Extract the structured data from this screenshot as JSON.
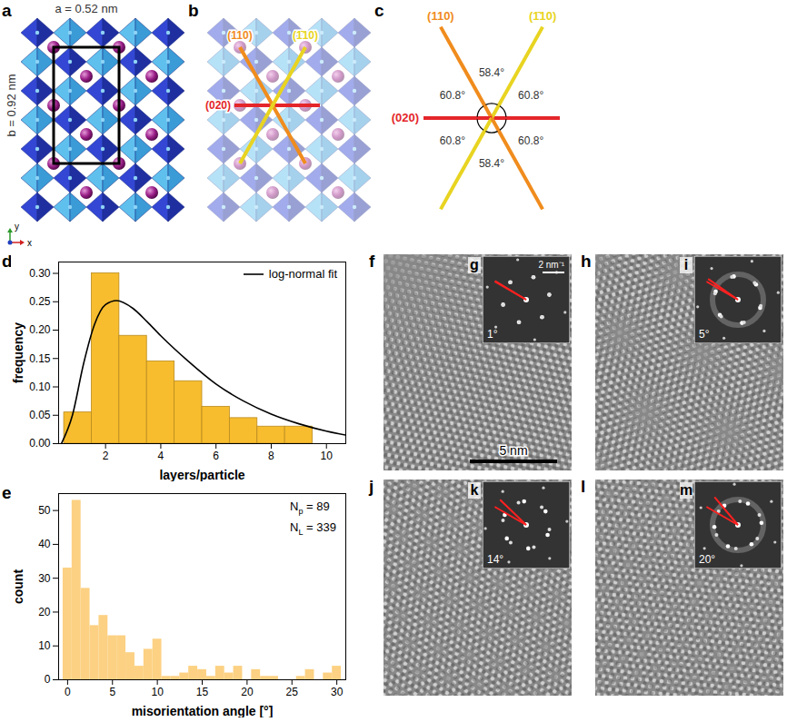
{
  "chart_data": [
    {
      "panel": "d",
      "type": "histogram",
      "xlabel": "layers/particle",
      "ylabel": "frequency",
      "bins": [
        0.5,
        1.5,
        2.5,
        3.5,
        4.5,
        5.5,
        6.5,
        7.5,
        8.5,
        9.5
      ],
      "values": [
        0.055,
        0.3,
        0.19,
        0.145,
        0.11,
        0.065,
        0.045,
        0.03,
        0.03
      ],
      "color": "#f7bd2e",
      "series": [
        {
          "name": "log-normal fit",
          "type": "line",
          "color": "#000000",
          "x": [
            0.4,
            0.8,
            1.2,
            1.6,
            2.0,
            2.4,
            3.0,
            3.5,
            4.0,
            5.0,
            6.0,
            7.0,
            8.0,
            9.0,
            10.0,
            10.7
          ],
          "values": [
            0.0,
            0.05,
            0.14,
            0.21,
            0.245,
            0.252,
            0.238,
            0.215,
            0.19,
            0.145,
            0.105,
            0.075,
            0.052,
            0.035,
            0.022,
            0.015
          ]
        }
      ],
      "xlim": [
        0.3,
        10.7
      ],
      "xticks": [
        2,
        4,
        6,
        8,
        10
      ],
      "ylim": [
        0,
        0.32
      ],
      "yticks": [
        {
          "value": 0,
          "label": "0.00"
        },
        {
          "value": 0.05,
          "label": "0.05"
        },
        {
          "value": 0.1,
          "label": "0.10"
        },
        {
          "value": 0.15,
          "label": "0.15"
        },
        {
          "value": 0.2,
          "label": "0.20"
        },
        {
          "value": 0.25,
          "label": "0.25"
        },
        {
          "value": 0.3,
          "label": "0.30"
        }
      ],
      "legend": "top-right"
    },
    {
      "panel": "e",
      "type": "histogram",
      "xlabel": "misorientation angle [°]",
      "ylabel": "count",
      "bins": [
        -0.5,
        0.5,
        1.5,
        2.5,
        3.5,
        4.5,
        5.5,
        6.5,
        7.5,
        8.5,
        9.5,
        10.5,
        11.5,
        12.5,
        13.5,
        14.5,
        15.5,
        16.5,
        17.5,
        18.5,
        19.5,
        20.5,
        21.5,
        22.5,
        23.5,
        24.5,
        25.5,
        26.5,
        27.5,
        28.5,
        29.5,
        30.5
      ],
      "values": [
        33,
        53,
        27,
        16,
        19,
        13,
        13,
        8,
        4,
        9,
        12,
        1,
        1,
        2,
        4,
        3,
        1,
        4,
        2,
        4,
        0,
        3,
        1,
        1,
        0,
        0,
        1,
        3,
        0,
        2,
        4
      ],
      "color": "#fcd183",
      "annotations": [
        {
          "symbol": "N",
          "subscript": "p",
          "text": "= 89"
        },
        {
          "symbol": "N",
          "subscript": "L",
          "text": "= 339"
        }
      ],
      "xlim": [
        -1,
        31
      ],
      "xticks": [
        0,
        5,
        10,
        15,
        20,
        25,
        30
      ],
      "ylim": [
        0,
        55
      ],
      "yticks": [
        0,
        10,
        20,
        30,
        40,
        50
      ]
    }
  ],
  "structure": {
    "planes": [
      {
        "label": "(020)",
        "color": "#e4262a"
      },
      {
        "label": "(1̄10)",
        "color": "#e8d421"
      },
      {
        "label": "(110)",
        "color": "#f08c1d"
      }
    ],
    "a": {
      "panel": "a",
      "cell_a": "a = 0.52 nm",
      "cell_b": "b = 0.92 nm",
      "axes": [
        "x",
        "y"
      ]
    },
    "b": {
      "panel": "b"
    },
    "c": {
      "panel": "c",
      "sectors": {
        "values": [
          60.8,
          58.4,
          60.8,
          60.8,
          58.4,
          60.8
        ],
        "value_labels": [
          "60.8°",
          "58.4°",
          "60.8°",
          "60.8°",
          "58.4°",
          "60.8°"
        ]
      }
    }
  },
  "micrographs": [
    {
      "panel": "f",
      "inset": "g",
      "angle": 1,
      "angle_label": "1°",
      "scale_bar": "5 nm",
      "inset_scale_bar": "2 nm⁻¹"
    },
    {
      "panel": "h",
      "inset": "i",
      "angle": 5,
      "angle_label": "5°"
    },
    {
      "panel": "j",
      "inset": "k",
      "angle": 14,
      "angle_label": "14°"
    },
    {
      "panel": "l",
      "inset": "m",
      "angle": 20,
      "angle_label": "20°"
    }
  ]
}
